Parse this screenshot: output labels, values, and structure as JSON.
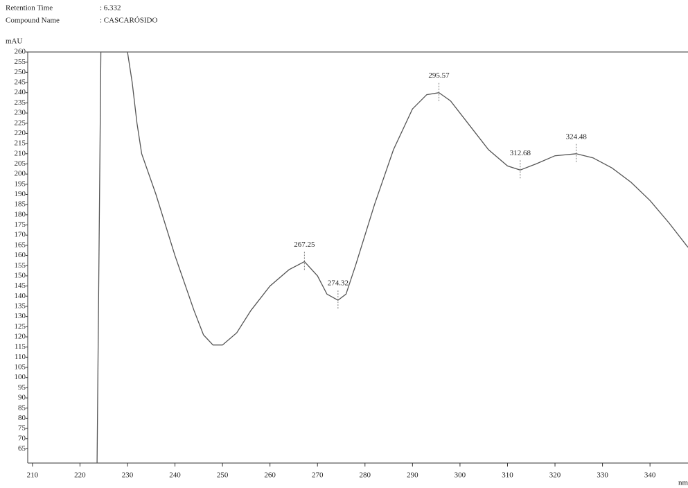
{
  "chart_data": {
    "type": "line",
    "header": [
      {
        "label": "Retention Time",
        "value": ": 6.332"
      },
      {
        "label": "Compound Name",
        "value": ": CASCARÓSIDO"
      }
    ],
    "ylabel": "mAU",
    "xlabel": "nm",
    "x": [
      223.6,
      224.4,
      230,
      231,
      232,
      233,
      236,
      240,
      244,
      246,
      248,
      250,
      253,
      256,
      260,
      264,
      267.25,
      270,
      272,
      274.32,
      276,
      278,
      282,
      286,
      290,
      293,
      295.57,
      298,
      302,
      306,
      310,
      312.68,
      316,
      320,
      324.48,
      328,
      332,
      336,
      340,
      344,
      348
    ],
    "series": [
      {
        "color": "#555555",
        "values": [
          58,
          260,
          260,
          245,
          225,
          210,
          190,
          160,
          133,
          121,
          116,
          116,
          122,
          133,
          145,
          153,
          157,
          150,
          141,
          138,
          141,
          155,
          185,
          212,
          232,
          239,
          240,
          236,
          224,
          212,
          204,
          202,
          205,
          209,
          210,
          208,
          203,
          196,
          187,
          176,
          164
        ]
      }
    ],
    "peaks": [
      {
        "x": 267.25,
        "y": 157
      },
      {
        "x": 274.32,
        "y": 138
      },
      {
        "x": 295.57,
        "y": 240
      },
      {
        "x": 312.68,
        "y": 202
      },
      {
        "x": 324.48,
        "y": 210
      }
    ],
    "xlim": [
      209,
      348
    ],
    "ylim": [
      58,
      260
    ],
    "xticks": [
      210,
      220,
      230,
      240,
      250,
      260,
      270,
      280,
      290,
      300,
      310,
      320,
      330,
      340
    ],
    "yticks": [
      65,
      70,
      75,
      80,
      85,
      90,
      95,
      100,
      105,
      110,
      115,
      120,
      125,
      130,
      135,
      140,
      145,
      150,
      155,
      160,
      165,
      170,
      175,
      180,
      185,
      190,
      195,
      200,
      205,
      210,
      215,
      220,
      225,
      230,
      235,
      240,
      245,
      250,
      255,
      260
    ]
  }
}
